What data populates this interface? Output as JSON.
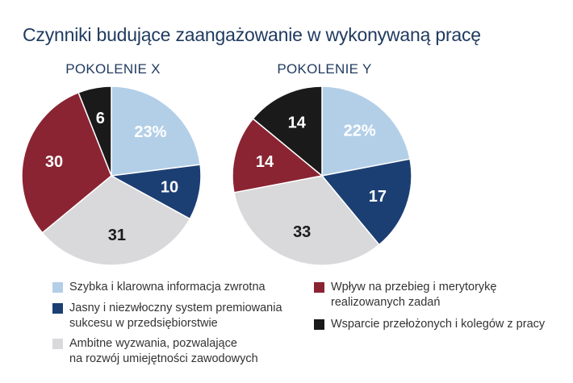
{
  "title": "Czynniki budujące zaangażowanie w wykonywaną pracę",
  "chart_data": [
    {
      "type": "pie",
      "title": "POKOLENIE X",
      "categories": [
        "Szybka i klarowna informacja zwrotna",
        "Jasny i niezwłoczny system premiowania sukcesu w przedsiębiorstwie",
        "Ambitne wyzwania, pozwalające na rozwój umiejętności zawodowych",
        "Wpływ na przebieg i merytorykę realizowanych zadań",
        "Wsparcie przełożonych i kolegów z pracy"
      ],
      "values": [
        23,
        10,
        31,
        30,
        6
      ],
      "labels": [
        "23%",
        "10",
        "31",
        "30",
        "6"
      ]
    },
    {
      "type": "pie",
      "title": "POKOLENIE Y",
      "categories": [
        "Szybka i klarowna informacja zwrotna",
        "Jasny i niezwłoczny system premiowania sukcesu w przedsiębiorstwie",
        "Ambitne wyzwania, pozwalające na rozwój umiejętności zawodowych",
        "Wpływ na przebieg i merytorykę realizowanych zadań",
        "Wsparcie przełożonych i kolegów z pracy"
      ],
      "values": [
        22,
        17,
        33,
        14,
        14
      ],
      "labels": [
        "22%",
        "17",
        "33",
        "14",
        "14"
      ]
    }
  ],
  "colors": [
    "#b3cfe8",
    "#1c3f73",
    "#d9d9db",
    "#8a2432",
    "#1a1a1a"
  ],
  "label_colors": [
    "#ffffff",
    "#ffffff",
    "#1a1a1a",
    "#ffffff",
    "#ffffff"
  ],
  "legend": [
    {
      "label": "Szybka i klarowna informacja zwrotna"
    },
    {
      "label": "Jasny i niezwłoczny system premiowania\nsukcesu w przedsiębiorstwie"
    },
    {
      "label": "Ambitne wyzwania, pozwalające\nna rozwój umiejętności zawodowych"
    },
    {
      "label": "Wpływ na przebieg i merytorykę\nrealizowanych zadań"
    },
    {
      "label": "Wsparcie przełożonych i kolegów z pracy"
    }
  ],
  "legend_position": "bottom"
}
